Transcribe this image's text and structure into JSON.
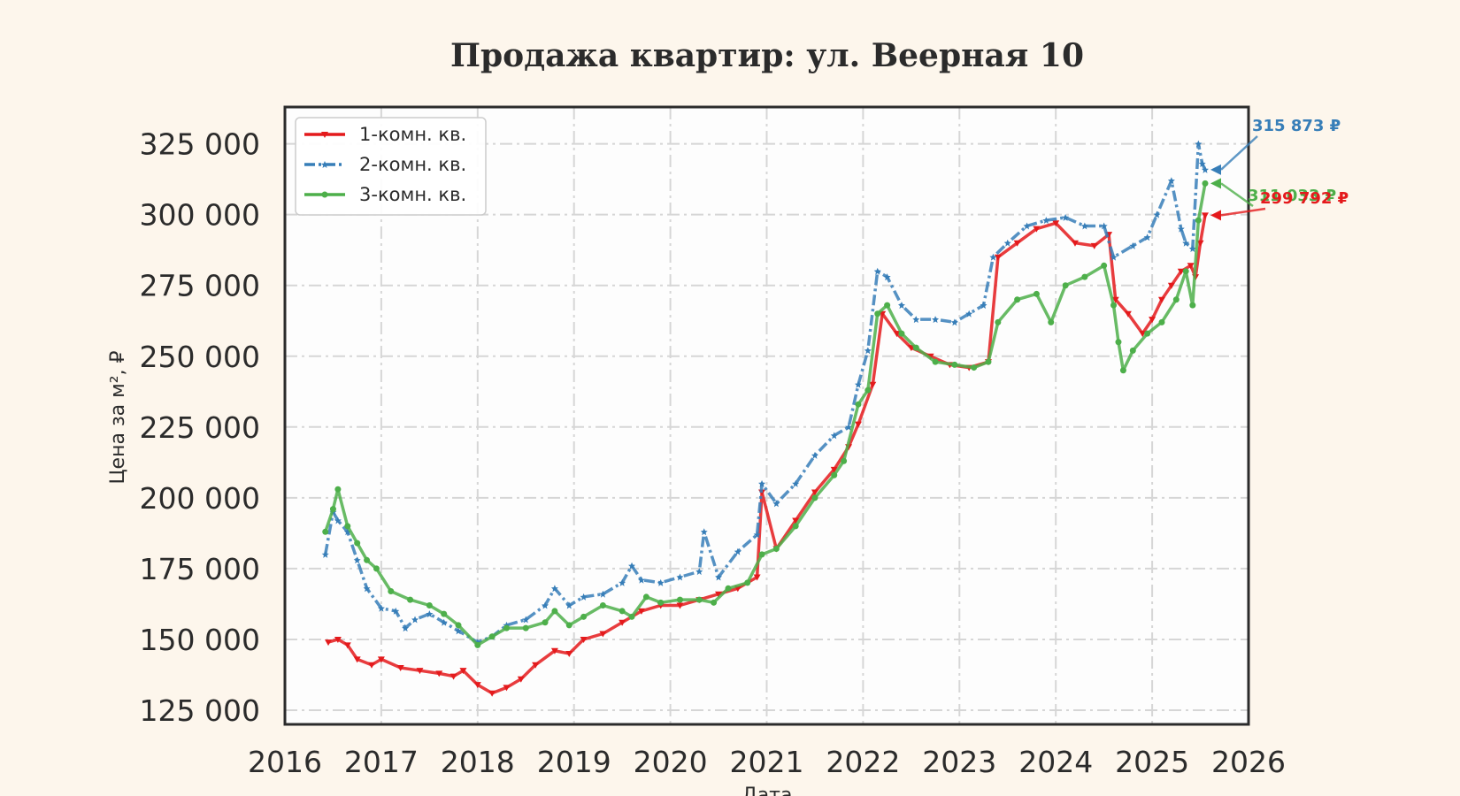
{
  "chart_data": {
    "type": "line",
    "title": "Продажа квартир: ул. Веерная 10",
    "xlabel": "Дата",
    "ylabel": "Цена за м², ₽",
    "xlim": [
      2016.0,
      2026.0
    ],
    "ylim": [
      120000,
      338000
    ],
    "xticks": [
      2016,
      2017,
      2018,
      2019,
      2020,
      2021,
      2022,
      2023,
      2024,
      2025,
      2026
    ],
    "xtick_labels": [
      "2016",
      "2017",
      "2018",
      "2019",
      "2020",
      "2021",
      "2022",
      "2023",
      "2024",
      "2025",
      "2026"
    ],
    "yticks": [
      125000,
      150000,
      175000,
      200000,
      225000,
      250000,
      275000,
      300000,
      325000
    ],
    "ytick_labels": [
      "125 000",
      "150 000",
      "175 000",
      "200 000",
      "225 000",
      "250 000",
      "275 000",
      "300 000",
      "325 000"
    ],
    "grid": true,
    "legend_position": "upper-left",
    "series": [
      {
        "name": "1-комн. кв.",
        "color": "#e41a1c",
        "linestyle": "solid",
        "marker": "triangle-down",
        "x": [
          2016.45,
          2016.55,
          2016.65,
          2016.75,
          2016.9,
          2017.0,
          2017.2,
          2017.4,
          2017.6,
          2017.75,
          2017.85,
          2018.0,
          2018.15,
          2018.3,
          2018.45,
          2018.6,
          2018.8,
          2018.95,
          2019.1,
          2019.3,
          2019.5,
          2019.7,
          2019.9,
          2020.1,
          2020.3,
          2020.5,
          2020.7,
          2020.9,
          2020.95,
          2021.1,
          2021.3,
          2021.5,
          2021.7,
          2021.85,
          2021.95,
          2022.1,
          2022.2,
          2022.35,
          2022.5,
          2022.7,
          2022.9,
          2023.1,
          2023.3,
          2023.4,
          2023.6,
          2023.8,
          2024.0,
          2024.2,
          2024.4,
          2024.55,
          2024.62,
          2024.75,
          2024.9,
          2025.0,
          2025.1,
          2025.2,
          2025.3,
          2025.4,
          2025.45,
          2025.5,
          2025.55
        ],
        "y": [
          149000,
          150000,
          148000,
          143000,
          141000,
          143000,
          140000,
          139000,
          138000,
          137000,
          139000,
          134000,
          131000,
          133000,
          136000,
          141000,
          146000,
          145000,
          150000,
          152000,
          156000,
          160000,
          162000,
          162000,
          164000,
          166000,
          168000,
          172000,
          202000,
          182000,
          192000,
          202000,
          210000,
          218000,
          226000,
          240000,
          265000,
          258000,
          253000,
          250000,
          247000,
          246000,
          248000,
          285000,
          290000,
          295000,
          297000,
          290000,
          289000,
          293000,
          270000,
          265000,
          258000,
          263000,
          270000,
          275000,
          280000,
          282000,
          278000,
          290000,
          299792
        ]
      },
      {
        "name": "2-комн. кв.",
        "color": "#377eb8",
        "linestyle": "dashdot",
        "marker": "star",
        "x": [
          2016.42,
          2016.5,
          2016.55,
          2016.65,
          2016.75,
          2016.85,
          2017.0,
          2017.15,
          2017.25,
          2017.35,
          2017.5,
          2017.65,
          2017.8,
          2018.0,
          2018.15,
          2018.3,
          2018.5,
          2018.7,
          2018.8,
          2018.95,
          2019.1,
          2019.3,
          2019.5,
          2019.6,
          2019.7,
          2019.9,
          2020.1,
          2020.3,
          2020.35,
          2020.5,
          2020.7,
          2020.9,
          2020.95,
          2021.1,
          2021.3,
          2021.5,
          2021.7,
          2021.85,
          2021.95,
          2022.05,
          2022.15,
          2022.25,
          2022.4,
          2022.55,
          2022.75,
          2022.95,
          2023.1,
          2023.25,
          2023.35,
          2023.5,
          2023.7,
          2023.9,
          2024.1,
          2024.3,
          2024.5,
          2024.6,
          2024.8,
          2024.95,
          2025.05,
          2025.2,
          2025.3,
          2025.35,
          2025.42,
          2025.48,
          2025.52,
          2025.55
        ],
        "y": [
          180000,
          195000,
          192000,
          188000,
          178000,
          168000,
          161000,
          160000,
          154000,
          157000,
          159000,
          156000,
          153000,
          149000,
          151000,
          155000,
          157000,
          162000,
          168000,
          162000,
          165000,
          166000,
          170000,
          176000,
          171000,
          170000,
          172000,
          174000,
          188000,
          172000,
          181000,
          187000,
          205000,
          198000,
          205000,
          215000,
          222000,
          225000,
          240000,
          252000,
          280000,
          278000,
          268000,
          263000,
          263000,
          262000,
          265000,
          268000,
          285000,
          290000,
          296000,
          298000,
          299000,
          296000,
          296000,
          285000,
          289000,
          292000,
          300000,
          312000,
          295000,
          290000,
          288000,
          325000,
          318000,
          315873
        ]
      },
      {
        "name": "3-комн. кв.",
        "color": "#4daf4a",
        "linestyle": "solid",
        "marker": "circle",
        "x": [
          2016.42,
          2016.5,
          2016.55,
          2016.65,
          2016.75,
          2016.85,
          2016.95,
          2017.1,
          2017.3,
          2017.5,
          2017.65,
          2017.8,
          2018.0,
          2018.15,
          2018.3,
          2018.5,
          2018.7,
          2018.8,
          2018.95,
          2019.1,
          2019.3,
          2019.5,
          2019.6,
          2019.75,
          2019.9,
          2020.1,
          2020.3,
          2020.45,
          2020.6,
          2020.8,
          2020.95,
          2021.1,
          2021.3,
          2021.5,
          2021.7,
          2021.8,
          2021.95,
          2022.05,
          2022.15,
          2022.25,
          2022.4,
          2022.55,
          2022.75,
          2022.95,
          2023.15,
          2023.3,
          2023.4,
          2023.6,
          2023.8,
          2023.95,
          2024.1,
          2024.3,
          2024.5,
          2024.6,
          2024.65,
          2024.7,
          2024.8,
          2024.95,
          2025.1,
          2025.25,
          2025.35,
          2025.42,
          2025.48,
          2025.55
        ],
        "y": [
          188000,
          196000,
          203000,
          190000,
          184000,
          178000,
          175000,
          167000,
          164000,
          162000,
          159000,
          155000,
          148000,
          151000,
          154000,
          154000,
          156000,
          160000,
          155000,
          158000,
          162000,
          160000,
          158000,
          165000,
          163000,
          164000,
          164000,
          163000,
          168000,
          170000,
          180000,
          182000,
          190000,
          200000,
          208000,
          213000,
          233000,
          238000,
          265000,
          268000,
          258000,
          253000,
          248000,
          247000,
          246000,
          248000,
          262000,
          270000,
          272000,
          262000,
          275000,
          278000,
          282000,
          268000,
          255000,
          245000,
          252000,
          258000,
          262000,
          270000,
          280000,
          268000,
          298000,
          311033
        ]
      }
    ],
    "annotations": [
      {
        "text": "315 873 ₽",
        "color": "#377eb8"
      },
      {
        "text": "311 033 ₽",
        "color": "#4daf4a"
      },
      {
        "text": "299 792 ₽",
        "color": "#e41a1c"
      }
    ]
  }
}
